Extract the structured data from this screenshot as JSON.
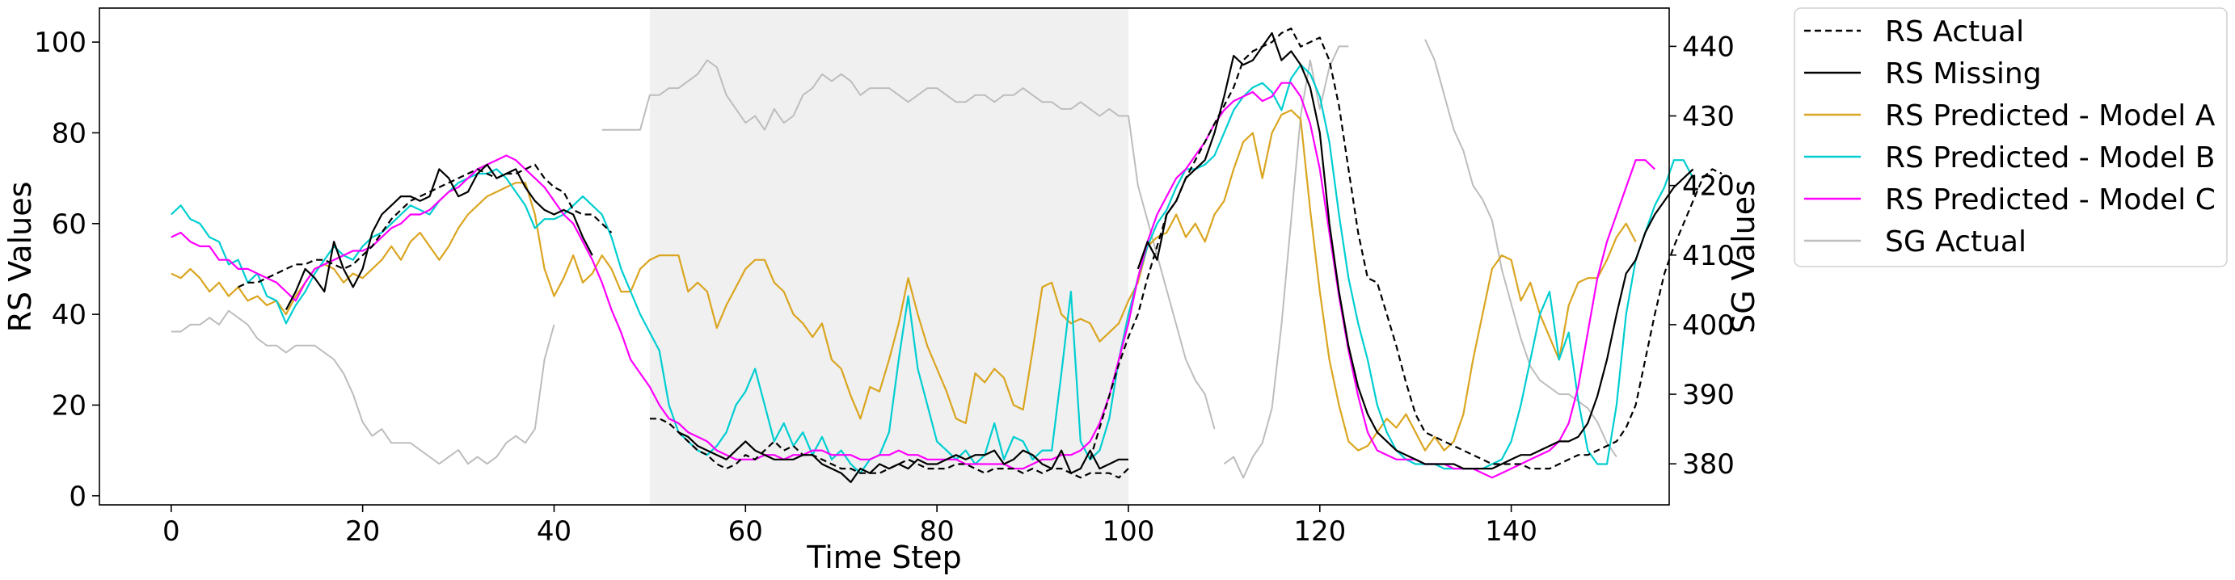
{
  "chart_data": {
    "type": "line",
    "title": "",
    "xlabel": "Time Step",
    "ylabel": "RS Values",
    "y2label": "SG Values",
    "xlim": [
      -7.5,
      156.5
    ],
    "ylim": [
      -2,
      107.5
    ],
    "y2lim": [
      374.1,
      445.5
    ],
    "x_ticks": [
      0,
      20,
      40,
      60,
      80,
      100,
      120,
      140
    ],
    "y_ticks": [
      0,
      20,
      40,
      60,
      80,
      100
    ],
    "y2_ticks": [
      380,
      390,
      400,
      410,
      420,
      430,
      440
    ],
    "shaded_region": {
      "x": [
        50,
        100
      ],
      "color": "#f0f0f0"
    },
    "legend_position": "outside-right-top",
    "grid": false,
    "series": [
      {
        "name": "RS Actual",
        "axis": "left",
        "color": "#000000",
        "style": "dashed",
        "segments": [
          {
            "x0": 7,
            "values": [
              46,
              47,
              47,
              48,
              49,
              50,
              51,
              51,
              52,
              52,
              51,
              50,
              51,
              53,
              55,
              58,
              61,
              63,
              65,
              66,
              67,
              68,
              69,
              70,
              71,
              72,
              71,
              70,
              71,
              71,
              72,
              73,
              70,
              68,
              67,
              63,
              62,
              62,
              60,
              58
            ]
          },
          {
            "x0": 50,
            "values": [
              17,
              17,
              16,
              14,
              12,
              10,
              9,
              7,
              6,
              7,
              9,
              8,
              10,
              12,
              10,
              11,
              9,
              9,
              8,
              7,
              6,
              6,
              5,
              5,
              5,
              6,
              7,
              8,
              7,
              6,
              6,
              6,
              7,
              7,
              6,
              5,
              6,
              6,
              6,
              5,
              6,
              5,
              6,
              6,
              5,
              4,
              5,
              5,
              5,
              4,
              6
            ]
          },
          {
            "x0": 96,
            "values": [
              8,
              15,
              22,
              29,
              35,
              40,
              48,
              55,
              62,
              65,
              70,
              74,
              78,
              82,
              86,
              90,
              96,
              98,
              99,
              100,
              102,
              103,
              99,
              100,
              101,
              96,
              86,
              72,
              58,
              48,
              47,
              40,
              33,
              25,
              18,
              14,
              13,
              12,
              11,
              10,
              9,
              8,
              7,
              7,
              7,
              7,
              6,
              6,
              6,
              7,
              8,
              9,
              9,
              10,
              11,
              12,
              15,
              20,
              30,
              40,
              49,
              55,
              60,
              65,
              70,
              72,
              71
            ]
          }
        ]
      },
      {
        "name": "RS Missing",
        "axis": "left",
        "color": "#000000",
        "style": "solid",
        "segments": [
          {
            "x0": 12,
            "values": [
              41,
              45,
              50,
              48,
              45,
              56,
              50,
              46,
              50,
              58,
              62,
              64,
              66,
              66,
              65,
              66,
              72,
              70,
              66,
              67,
              71,
              73,
              70,
              71,
              72,
              68,
              65,
              63,
              62,
              63,
              62,
              57,
              53
            ]
          },
          {
            "x0": 53,
            "values": [
              14,
              13,
              11,
              10,
              9,
              8,
              10,
              12,
              10,
              9,
              8,
              8,
              8,
              9,
              9,
              7,
              6,
              5,
              3,
              6,
              5,
              7,
              6,
              7,
              6,
              8,
              7,
              7,
              8,
              9,
              8,
              9,
              9,
              10,
              7,
              8,
              10,
              9,
              7,
              6,
              10,
              5,
              6,
              10,
              6,
              7,
              8,
              8
            ]
          },
          {
            "x0": 101,
            "values": [
              50,
              56,
              52,
              62,
              65,
              70,
              72,
              74,
              80,
              88,
              97,
              95,
              96,
              99,
              102,
              96,
              98,
              95,
              90,
              80,
              60,
              45,
              33,
              24,
              18,
              14,
              12,
              10,
              9,
              8,
              7,
              7,
              7,
              7,
              6,
              6,
              6,
              6,
              7,
              8,
              9,
              9,
              10,
              11,
              12,
              12,
              13,
              16,
              22,
              30,
              40,
              49,
              52,
              58,
              62,
              65,
              68,
              70,
              72
            ]
          }
        ]
      },
      {
        "name": "RS Predicted - Model A",
        "axis": "left",
        "color": "#DAA520",
        "style": "solid",
        "segments": [
          {
            "x0": 0,
            "values": [
              49,
              48,
              50,
              48,
              45,
              47,
              44,
              46,
              43,
              44,
              42,
              43,
              40,
              44,
              47,
              50,
              51,
              50,
              47,
              49,
              48,
              50,
              52,
              55,
              52,
              56,
              58,
              55,
              52,
              55,
              59,
              62,
              64,
              66,
              67,
              68,
              69,
              69,
              62,
              50,
              44,
              48,
              53,
              47,
              49,
              53,
              50,
              45,
              45,
              50,
              52,
              53,
              53,
              53,
              45,
              47,
              45,
              37,
              42,
              46,
              50,
              52,
              52,
              47,
              45,
              40,
              38,
              35,
              38,
              30,
              28,
              22,
              17,
              24,
              23,
              30,
              38,
              48,
              40,
              33,
              28,
              23,
              17,
              16,
              27,
              25,
              28,
              26,
              20,
              19,
              32,
              46,
              47,
              40,
              38,
              39,
              38,
              34,
              36,
              38,
              43,
              47,
              55,
              57,
              58,
              62,
              57,
              60,
              56,
              62,
              65,
              72,
              78,
              80,
              70,
              80,
              84,
              85,
              83,
              63,
              45,
              30,
              20,
              12,
              10,
              11,
              14,
              17,
              15,
              18,
              14,
              10,
              13,
              10,
              12,
              18,
              30,
              40,
              50,
              53,
              52,
              43,
              47,
              40,
              35,
              30,
              42,
              47,
              48,
              48,
              52,
              57,
              60,
              56
            ]
          }
        ]
      },
      {
        "name": "RS Predicted - Model B",
        "axis": "left",
        "color": "#00CED1",
        "style": "solid",
        "segments": [
          {
            "x0": 0,
            "values": [
              62,
              64,
              61,
              60,
              57,
              56,
              51,
              52,
              47,
              49,
              44,
              43,
              38,
              42,
              45,
              49,
              52,
              55,
              53,
              52,
              55,
              57,
              58,
              60,
              62,
              64,
              63,
              62,
              65,
              67,
              69,
              70,
              71,
              71,
              72,
              70,
              67,
              64,
              59,
              61,
              61,
              62,
              64,
              66,
              64,
              62,
              57,
              50,
              45,
              40,
              36,
              32,
              20,
              14,
              12,
              10,
              9,
              11,
              14,
              20,
              23,
              28,
              20,
              12,
              16,
              11,
              14,
              9,
              13,
              8,
              10,
              7,
              5,
              8,
              9,
              14,
              30,
              44,
              28,
              20,
              12,
              10,
              8,
              10,
              7,
              9,
              16,
              8,
              13,
              12,
              8,
              10,
              10,
              27,
              45,
              12,
              8,
              10,
              17,
              30,
              40,
              48,
              55,
              60,
              63,
              68,
              72,
              72,
              73,
              75,
              80,
              85,
              88,
              90,
              91,
              89,
              85,
              92,
              95,
              93,
              88,
              78,
              62,
              48,
              38,
              30,
              20,
              14,
              10,
              8,
              7,
              7,
              7,
              6,
              6,
              6,
              6,
              6,
              7,
              8,
              12,
              20,
              30,
              40,
              45,
              30,
              36,
              21,
              10,
              7,
              7,
              20,
              40,
              52,
              58,
              64,
              68,
              74,
              74,
              70
            ]
          }
        ]
      },
      {
        "name": "RS Predicted - Model C",
        "axis": "left",
        "color": "#FF00FF",
        "style": "solid",
        "segments": [
          {
            "x0": 0,
            "values": [
              57,
              58,
              56,
              55,
              55,
              52,
              52,
              50,
              50,
              49,
              48,
              47,
              45,
              43,
              47,
              50,
              51,
              52,
              53,
              54,
              54,
              55,
              57,
              59,
              60,
              62,
              62,
              63,
              65,
              67,
              68,
              70,
              72,
              73,
              74,
              75,
              74,
              72,
              70,
              68,
              65,
              62,
              60,
              56,
              52,
              47,
              41,
              36,
              30,
              27,
              24,
              20,
              17,
              16,
              14,
              13,
              12,
              10,
              9,
              8,
              8,
              8,
              9,
              9,
              8,
              9,
              9,
              10,
              10,
              9,
              9,
              9,
              8,
              8,
              9,
              9,
              10,
              9,
              9,
              8,
              8,
              8,
              8,
              7,
              7,
              7,
              7,
              7,
              6,
              6,
              7,
              8,
              8,
              9,
              9,
              10,
              12,
              16,
              22,
              30,
              38,
              48,
              56,
              62,
              66,
              70,
              72,
              75,
              78,
              82,
              85,
              87,
              88,
              89,
              87,
              88,
              91,
              91,
              88,
              82,
              72,
              58,
              44,
              32,
              22,
              14,
              10,
              9,
              8,
              8,
              8,
              7,
              7,
              7,
              6,
              6,
              6,
              5,
              4,
              5,
              6,
              7,
              8,
              9,
              10,
              12,
              16,
              24,
              36,
              48,
              56,
              62,
              68,
              74,
              74,
              72
            ]
          }
        ]
      },
      {
        "name": "SG Actual",
        "axis": "right",
        "color": "#bdbdbd",
        "style": "solid",
        "segments": [
          {
            "x0": 0,
            "values": [
              399,
              399,
              400,
              400,
              401,
              400,
              402,
              401,
              400,
              398,
              397,
              397,
              396,
              397,
              397,
              397,
              396,
              395,
              393,
              390,
              386,
              384,
              385,
              383,
              383,
              383,
              382,
              381,
              380,
              381,
              382,
              380,
              381,
              380,
              381,
              383,
              384,
              383,
              385,
              395,
              400
            ]
          },
          {
            "x0": 45,
            "values": [
              428,
              428,
              428,
              428,
              428,
              433,
              433,
              434,
              434,
              435,
              436,
              438,
              437,
              433,
              431,
              429,
              430,
              428,
              431,
              429,
              430,
              433,
              434,
              436,
              435,
              436,
              435,
              433,
              434,
              434,
              434,
              433,
              432,
              433,
              434,
              434,
              433,
              432,
              432,
              433,
              433,
              432,
              433,
              433,
              434,
              433,
              432,
              432,
              431,
              431,
              432,
              431,
              430,
              431,
              430,
              430,
              420,
              415,
              410,
              405,
              400,
              395,
              392,
              390,
              385
            ]
          },
          {
            "x0": 110,
            "values": [
              380,
              381,
              378,
              381,
              383,
              388,
              400,
              415,
              430,
              438,
              431,
              437,
              440,
              440
            ]
          },
          {
            "x0": 131,
            "values": [
              441,
              438,
              433,
              428,
              425,
              420,
              418,
              415,
              408,
              403,
              398,
              394,
              392,
              391,
              390,
              390,
              389,
              388,
              386,
              383,
              381
            ]
          }
        ]
      }
    ]
  }
}
